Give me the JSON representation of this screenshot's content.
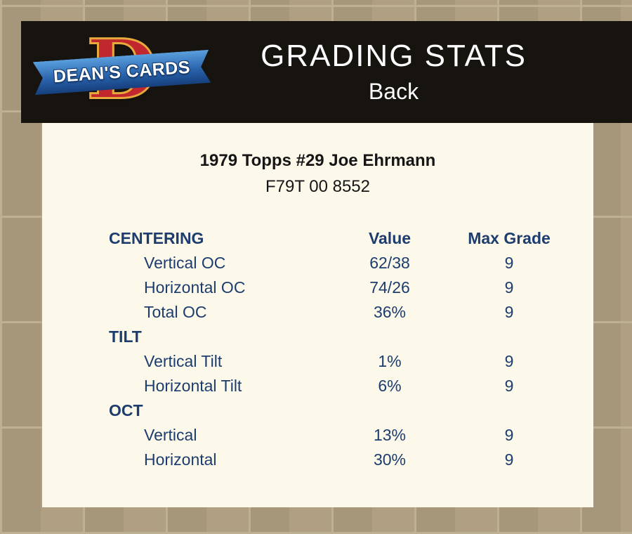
{
  "header": {
    "logo": {
      "monogram": "D",
      "brand": "DEAN'S CARDS"
    },
    "title": "GRADING STATS",
    "subtitle": "Back"
  },
  "card": {
    "title": "1979 Topps #29 Joe Ehrmann",
    "serial": "F79T 00 8552"
  },
  "table": {
    "columns": [
      "CENTERING",
      "Value",
      "Max Grade"
    ],
    "rows": [
      {
        "section": false,
        "label": "Vertical OC",
        "value": "62/38",
        "max_grade": "9"
      },
      {
        "section": false,
        "label": "Horizontal OC",
        "value": "74/26",
        "max_grade": "9"
      },
      {
        "section": false,
        "label": "Total OC",
        "value": "36%",
        "max_grade": "9"
      },
      {
        "section": true,
        "label": "TILT",
        "value": "",
        "max_grade": ""
      },
      {
        "section": false,
        "label": "Vertical Tilt",
        "value": "1%",
        "max_grade": "9"
      },
      {
        "section": false,
        "label": "Horizontal Tilt",
        "value": "6%",
        "max_grade": "9"
      },
      {
        "section": true,
        "label": "OCT",
        "value": "",
        "max_grade": ""
      },
      {
        "section": false,
        "label": "Vertical",
        "value": "13%",
        "max_grade": "9"
      },
      {
        "section": false,
        "label": "Horizontal",
        "value": "30%",
        "max_grade": "9"
      }
    ]
  },
  "colors": {
    "accent_navy": "#1d3d6e",
    "header_bg": "#171410",
    "panel_bg": "#fcf8ea",
    "page_bg": "#b3a385",
    "logo_red": "#c0282e",
    "logo_blue": "#2a64ad"
  }
}
